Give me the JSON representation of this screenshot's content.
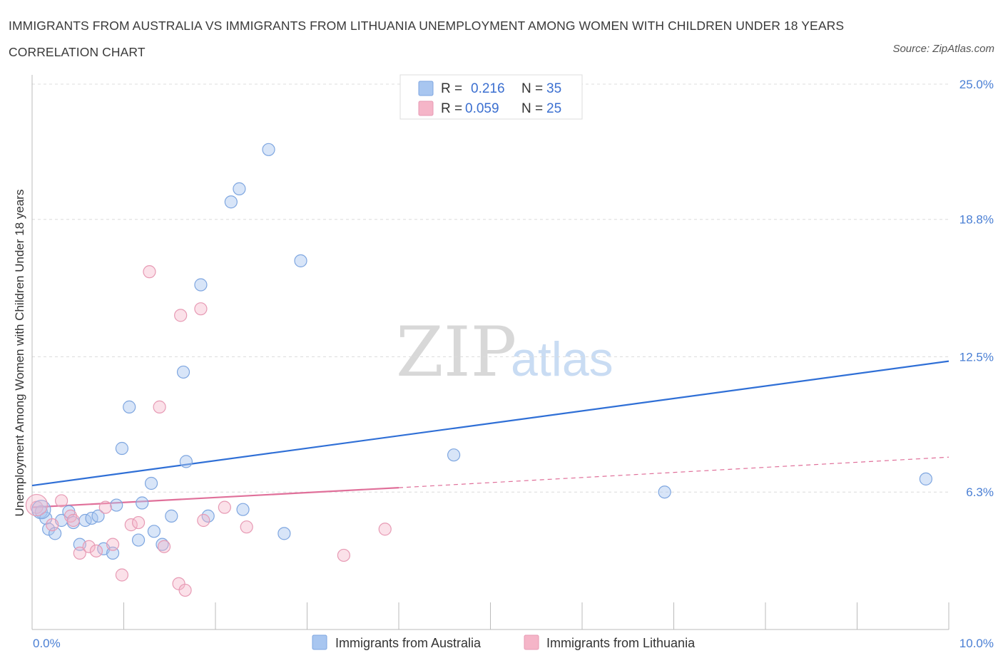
{
  "title": "IMMIGRANTS FROM AUSTRALIA VS IMMIGRANTS FROM LITHUANIA UNEMPLOYMENT AMONG WOMEN WITH CHILDREN UNDER 18 YEARS CORRELATION CHART",
  "source": "Source: ZipAtlas.com",
  "watermark": {
    "zip": "ZIP",
    "atlas": "atlas"
  },
  "colors": {
    "australia": "#a8c6f0",
    "australia_line": "#2f6fd6",
    "lithuania": "#f5b5c8",
    "lithuania_line": "#e0709a",
    "tick_label": "#4a7fd4"
  },
  "legend": {
    "rows": [
      {
        "r_label": "R =",
        "r_value": "0.216",
        "n_label": "N =",
        "n_value": "35"
      },
      {
        "r_label": "R =",
        "r_value": "0.059",
        "n_label": "N =",
        "n_value": "25"
      }
    ]
  },
  "bottom_legend": [
    "Immigrants from Australia",
    "Immigrants from Lithuania"
  ],
  "chart_data": {
    "type": "scatter",
    "title": "IMMIGRANTS FROM AUSTRALIA VS IMMIGRANTS FROM LITHUANIA UNEMPLOYMENT AMONG WOMEN WITH CHILDREN UNDER 18 YEARS CORRELATION CHART",
    "xlabel": "",
    "ylabel": "Unemployment Among Women with Children Under 18 years",
    "xlim": [
      0,
      10
    ],
    "ylim": [
      0,
      25
    ],
    "x_tick_labels": [
      "0.0%",
      "10.0%"
    ],
    "y_tick_labels": [
      "25.0%",
      "18.8%",
      "12.5%",
      "6.3%"
    ],
    "y_tick_values": [
      25.0,
      18.8,
      12.5,
      6.3
    ],
    "series": [
      {
        "name": "Immigrants from Australia",
        "R": 0.216,
        "N": 35,
        "trend": {
          "x": [
            0,
            10
          ],
          "y": [
            6.6,
            12.3
          ]
        },
        "points": [
          [
            0.1,
            5.4
          ],
          [
            0.15,
            5.1
          ],
          [
            0.18,
            4.6
          ],
          [
            0.25,
            4.4
          ],
          [
            0.32,
            5.0
          ],
          [
            0.4,
            5.4
          ],
          [
            0.45,
            4.9
          ],
          [
            0.52,
            3.9
          ],
          [
            0.58,
            5.0
          ],
          [
            0.65,
            5.1
          ],
          [
            0.72,
            5.2
          ],
          [
            0.78,
            3.7
          ],
          [
            0.88,
            3.5
          ],
          [
            0.92,
            5.7
          ],
          [
            0.98,
            8.3
          ],
          [
            1.06,
            10.2
          ],
          [
            1.16,
            4.1
          ],
          [
            1.2,
            5.8
          ],
          [
            1.3,
            6.7
          ],
          [
            1.33,
            4.5
          ],
          [
            1.42,
            3.9
          ],
          [
            1.52,
            5.2
          ],
          [
            1.65,
            11.8
          ],
          [
            1.68,
            7.7
          ],
          [
            1.84,
            15.8
          ],
          [
            1.92,
            5.2
          ],
          [
            2.17,
            19.6
          ],
          [
            2.26,
            20.2
          ],
          [
            2.3,
            5.5
          ],
          [
            2.58,
            22.0
          ],
          [
            2.75,
            4.4
          ],
          [
            2.93,
            16.9
          ],
          [
            4.6,
            8.0
          ],
          [
            6.9,
            6.3
          ],
          [
            9.75,
            6.9
          ]
        ]
      },
      {
        "name": "Immigrants from Lithuania",
        "R": 0.059,
        "N": 25,
        "trend": {
          "x": [
            0,
            4.0
          ],
          "y": [
            5.6,
            6.5
          ]
        },
        "trend_dashed": {
          "x": [
            4.0,
            10
          ],
          "y": [
            6.5,
            7.9
          ]
        },
        "points": [
          [
            0.05,
            5.6
          ],
          [
            0.22,
            4.8
          ],
          [
            0.32,
            5.9
          ],
          [
            0.42,
            5.2
          ],
          [
            0.52,
            3.5
          ],
          [
            0.62,
            3.8
          ],
          [
            0.7,
            3.6
          ],
          [
            0.8,
            5.6
          ],
          [
            0.88,
            3.9
          ],
          [
            0.98,
            2.5
          ],
          [
            1.08,
            4.8
          ],
          [
            1.16,
            4.9
          ],
          [
            1.28,
            16.4
          ],
          [
            1.39,
            10.2
          ],
          [
            1.44,
            3.8
          ],
          [
            1.6,
            2.1
          ],
          [
            1.62,
            14.4
          ],
          [
            1.67,
            1.8
          ],
          [
            1.84,
            14.7
          ],
          [
            1.87,
            5.0
          ],
          [
            2.1,
            5.6
          ],
          [
            2.34,
            4.7
          ],
          [
            3.4,
            3.4
          ],
          [
            3.85,
            4.6
          ],
          [
            0.45,
            5.0
          ]
        ]
      }
    ]
  }
}
